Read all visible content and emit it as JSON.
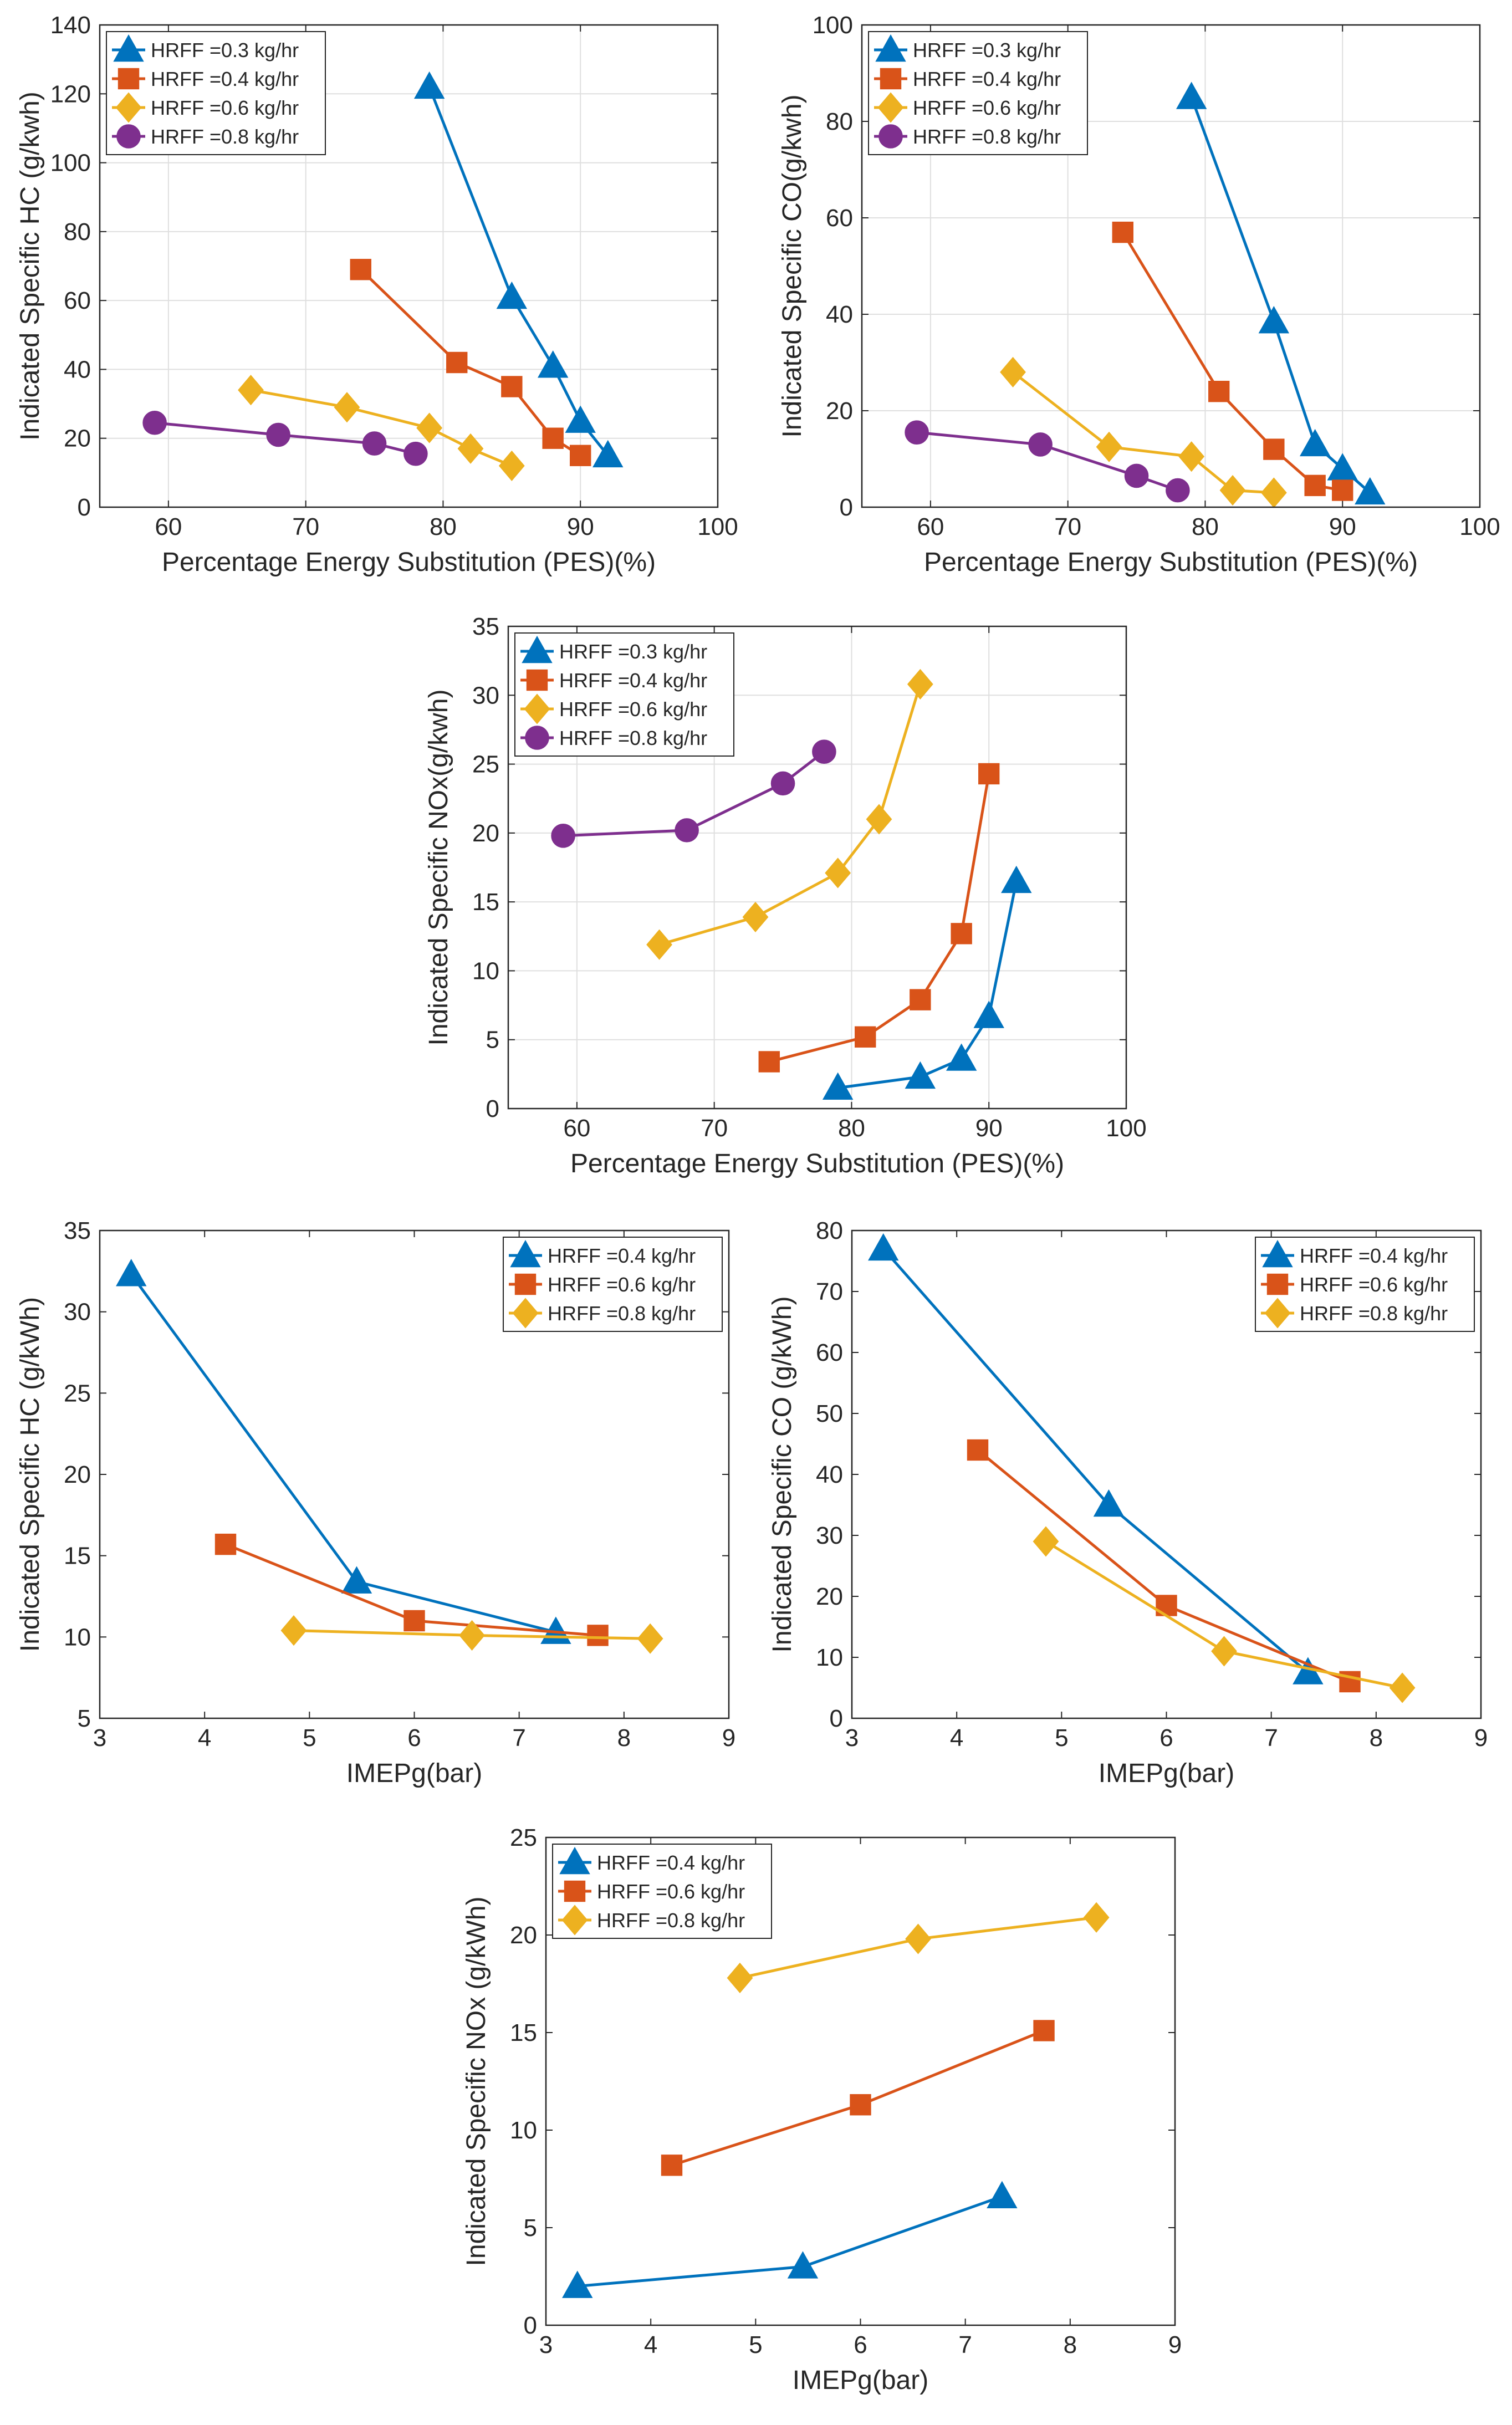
{
  "colors": {
    "HRFF =0.3 kg/hr": "#0072BD",
    "HRFF =0.4 kg/hr": "#D95319",
    "HRFF =0.6 kg/hr": "#EDB120",
    "HRFF =0.8 kg/hr": "#7E2F8E",
    "axis": "#262626",
    "grid": "#dfdfdf",
    "legend_border": "#262626"
  },
  "chart_data": [
    {
      "id": "hc-vs-pes",
      "type": "line",
      "xlabel": "Percentage Energy Substitution (PES)(%)",
      "ylabel": "Indicated Specific HC  (g/kwh)",
      "xlim": [
        55,
        100
      ],
      "ylim": [
        0,
        140
      ],
      "xticks": [
        60,
        70,
        80,
        90,
        100
      ],
      "yticks": [
        0,
        20,
        40,
        60,
        80,
        100,
        120,
        140
      ],
      "grid": true,
      "legend_position": "top-left",
      "series": [
        {
          "name": "HRFF =0.3 kg/hr",
          "marker": "triangle",
          "x": [
            79,
            85,
            88,
            90,
            92
          ],
          "y": [
            122,
            61,
            41,
            25,
            15
          ],
          "color_key": "HRFF =0.3 kg/hr"
        },
        {
          "name": "HRFF =0.4 kg/hr",
          "marker": "square",
          "x": [
            74,
            81,
            85,
            88,
            90
          ],
          "y": [
            69,
            42,
            35,
            20,
            15
          ],
          "color_key": "HRFF =0.4 kg/hr"
        },
        {
          "name": "HRFF =0.6 kg/hr",
          "marker": "diamond",
          "x": [
            66,
            73,
            79,
            82,
            85
          ],
          "y": [
            34,
            29,
            23,
            17,
            12
          ],
          "color_key": "HRFF =0.6 kg/hr"
        },
        {
          "name": "HRFF =0.8 kg/hr",
          "marker": "circle",
          "x": [
            59,
            68,
            75,
            78
          ],
          "y": [
            24.5,
            21,
            18.5,
            15.5
          ],
          "color_key": "HRFF =0.8 kg/hr"
        }
      ]
    },
    {
      "id": "co-vs-pes",
      "type": "line",
      "xlabel": "Percentage Energy Substitution (PES)(%)",
      "ylabel": "Indicated Specific CO(g/kwh)",
      "xlim": [
        55,
        100
      ],
      "ylim": [
        0,
        100
      ],
      "xticks": [
        60,
        70,
        80,
        90,
        100
      ],
      "yticks": [
        0,
        20,
        40,
        60,
        80,
        100
      ],
      "grid": true,
      "legend_position": "top-left",
      "series": [
        {
          "name": "HRFF =0.3 kg/hr",
          "marker": "triangle",
          "x": [
            79,
            85,
            88,
            90,
            92
          ],
          "y": [
            85,
            38.5,
            13,
            8,
            3
          ],
          "color_key": "HRFF =0.3 kg/hr"
        },
        {
          "name": "HRFF =0.4 kg/hr",
          "marker": "square",
          "x": [
            74,
            81,
            85,
            88,
            90
          ],
          "y": [
            57,
            24,
            12,
            4.5,
            3.5
          ],
          "color_key": "HRFF =0.4 kg/hr"
        },
        {
          "name": "HRFF =0.6 kg/hr",
          "marker": "diamond",
          "x": [
            66,
            73,
            79,
            82,
            85
          ],
          "y": [
            28,
            12.5,
            10.5,
            3.5,
            3
          ],
          "color_key": "HRFF =0.6 kg/hr"
        },
        {
          "name": "HRFF =0.8 kg/hr",
          "marker": "circle",
          "x": [
            59,
            68,
            75,
            78
          ],
          "y": [
            15.5,
            13,
            6.5,
            3.5
          ],
          "color_key": "HRFF =0.8 kg/hr"
        }
      ]
    },
    {
      "id": "nox-vs-pes",
      "type": "line",
      "xlabel": "Percentage Energy Substitution (PES)(%)",
      "ylabel": "Indicated Specific NOx(g/kwh)",
      "xlim": [
        55,
        100
      ],
      "ylim": [
        0,
        35
      ],
      "xticks": [
        60,
        70,
        80,
        90,
        100
      ],
      "yticks": [
        0,
        5,
        10,
        15,
        20,
        25,
        30,
        35
      ],
      "grid": true,
      "legend_position": "top-left",
      "series": [
        {
          "name": "HRFF =0.3 kg/hr",
          "marker": "triangle",
          "x": [
            79,
            85,
            88,
            90,
            92
          ],
          "y": [
            1.5,
            2.3,
            3.6,
            6.7,
            16.5
          ],
          "color_key": "HRFF =0.3 kg/hr"
        },
        {
          "name": "HRFF =0.4 kg/hr",
          "marker": "square",
          "x": [
            74,
            81,
            85,
            88,
            90
          ],
          "y": [
            3.4,
            5.2,
            7.9,
            12.7,
            24.3
          ],
          "color_key": "HRFF =0.4 kg/hr"
        },
        {
          "name": "HRFF =0.6 kg/hr",
          "marker": "diamond",
          "x": [
            66,
            73,
            79,
            82,
            85
          ],
          "y": [
            11.9,
            13.9,
            17.1,
            21,
            30.8
          ],
          "color_key": "HRFF =0.6 kg/hr"
        },
        {
          "name": "HRFF =0.8 kg/hr",
          "marker": "circle",
          "x": [
            59,
            68,
            75,
            78
          ],
          "y": [
            19.8,
            20.2,
            23.6,
            25.9
          ],
          "color_key": "HRFF =0.8 kg/hr"
        }
      ]
    },
    {
      "id": "hc-vs-imep",
      "type": "line",
      "xlabel": "IMEPg(bar)",
      "ylabel": "Indicated Specific HC (g/kWh)",
      "xlim": [
        3,
        9
      ],
      "ylim": [
        5,
        35
      ],
      "xticks": [
        3,
        4,
        5,
        6,
        7,
        8,
        9
      ],
      "yticks": [
        5,
        10,
        15,
        20,
        25,
        30,
        35
      ],
      "grid": false,
      "legend_position": "top-right",
      "series": [
        {
          "name": "HRFF =0.4 kg/hr",
          "marker": "triangle",
          "x": [
            3.3,
            5.45,
            7.35
          ],
          "y": [
            32.3,
            13.4,
            10.3
          ],
          "color_key": "HRFF =0.3 kg/hr"
        },
        {
          "name": "HRFF =0.6 kg/hr",
          "marker": "square",
          "x": [
            4.2,
            6,
            7.75
          ],
          "y": [
            15.7,
            11,
            10.1
          ],
          "color_key": "HRFF =0.4 kg/hr"
        },
        {
          "name": "HRFF =0.8 kg/hr",
          "marker": "diamond",
          "x": [
            4.85,
            6.55,
            8.25
          ],
          "y": [
            10.4,
            10.1,
            9.9
          ],
          "color_key": "HRFF =0.6 kg/hr"
        }
      ]
    },
    {
      "id": "co-vs-imep",
      "type": "line",
      "xlabel": "IMEPg(bar)",
      "ylabel": "Indicated Specific CO (g/kWh)",
      "xlim": [
        3,
        9
      ],
      "ylim": [
        0,
        80
      ],
      "xticks": [
        3,
        4,
        5,
        6,
        7,
        8,
        9
      ],
      "yticks": [
        0,
        10,
        20,
        30,
        40,
        50,
        60,
        70,
        80
      ],
      "grid": false,
      "legend_position": "top-right",
      "series": [
        {
          "name": "HRFF =0.4 kg/hr",
          "marker": "triangle",
          "x": [
            3.3,
            5.45,
            7.35
          ],
          "y": [
            77,
            35,
            7.5
          ],
          "color_key": "HRFF =0.3 kg/hr"
        },
        {
          "name": "HRFF =0.6 kg/hr",
          "marker": "square",
          "x": [
            4.2,
            6,
            7.75
          ],
          "y": [
            44,
            18.5,
            6
          ],
          "color_key": "HRFF =0.4 kg/hr"
        },
        {
          "name": "HRFF =0.8 kg/hr",
          "marker": "diamond",
          "x": [
            4.85,
            6.55,
            8.25
          ],
          "y": [
            29,
            11,
            5
          ],
          "color_key": "HRFF =0.6 kg/hr"
        }
      ]
    },
    {
      "id": "nox-vs-imep",
      "type": "line",
      "xlabel": "IMEPg(bar)",
      "ylabel": "Indicated Specific NOx (g/kWh)",
      "xlim": [
        3,
        9
      ],
      "ylim": [
        0,
        25
      ],
      "xticks": [
        3,
        4,
        5,
        6,
        7,
        8,
        9
      ],
      "yticks": [
        0,
        5,
        10,
        15,
        20,
        25
      ],
      "grid": false,
      "legend_position": "top-left",
      "series": [
        {
          "name": "HRFF =0.4 kg/hr",
          "marker": "triangle",
          "x": [
            3.3,
            5.45,
            7.35
          ],
          "y": [
            2,
            3,
            6.6
          ],
          "color_key": "HRFF =0.3 kg/hr"
        },
        {
          "name": "HRFF =0.6 kg/hr",
          "marker": "square",
          "x": [
            4.2,
            6,
            7.75
          ],
          "y": [
            8.2,
            11.3,
            15.1
          ],
          "color_key": "HRFF =0.4 kg/hr"
        },
        {
          "name": "HRFF =0.8 kg/hr",
          "marker": "diamond",
          "x": [
            4.85,
            6.55,
            8.25
          ],
          "y": [
            17.8,
            19.8,
            20.9
          ],
          "color_key": "HRFF =0.6 kg/hr"
        }
      ]
    }
  ]
}
